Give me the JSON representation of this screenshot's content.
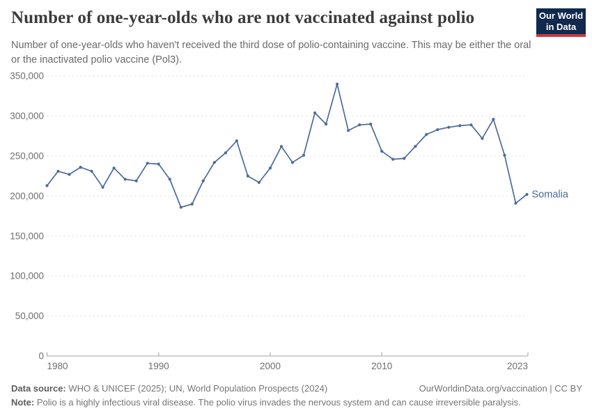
{
  "header": {
    "logo": {
      "line1": "Our World",
      "line2": "in Data"
    }
  },
  "chart_data": {
    "type": "line",
    "title": "Number of one-year-olds who are not vaccinated against polio",
    "subtitle": "Number of one-year-olds who haven't received the third dose of polio-containing vaccine. This may be either the oral or the inactivated polio vaccine (Pol3).",
    "xlabel": "",
    "ylabel": "",
    "x": [
      1980,
      1981,
      1982,
      1983,
      1984,
      1985,
      1986,
      1987,
      1988,
      1989,
      1990,
      1991,
      1992,
      1993,
      1994,
      1995,
      1996,
      1997,
      1998,
      1999,
      2000,
      2001,
      2002,
      2003,
      2004,
      2005,
      2006,
      2007,
      2008,
      2009,
      2010,
      2011,
      2012,
      2013,
      2014,
      2015,
      2016,
      2017,
      2018,
      2019,
      2020,
      2021,
      2022,
      2023
    ],
    "series": [
      {
        "name": "Somalia",
        "color": "#4C6A9C",
        "values": [
          213000,
          231000,
          227000,
          236000,
          231000,
          211000,
          235000,
          221000,
          219000,
          241000,
          240000,
          221000,
          186000,
          190000,
          219000,
          242000,
          254000,
          269000,
          225000,
          217000,
          235000,
          262000,
          242000,
          251000,
          304000,
          290000,
          340000,
          282000,
          289000,
          290000,
          256000,
          246000,
          247000,
          262000,
          277000,
          283000,
          286000,
          288000,
          289000,
          272000,
          296000,
          251000,
          191000,
          202000
        ]
      }
    ],
    "ylim": [
      0,
      350000
    ],
    "yticks": [
      0,
      50000,
      100000,
      150000,
      200000,
      250000,
      300000,
      350000
    ],
    "xticks": [
      1980,
      1990,
      2000,
      2010,
      2023
    ],
    "grid": "horizontal-dashed",
    "legend": "end-of-line entity label"
  },
  "footer": {
    "data_source_label": "Data source:",
    "data_source": "WHO & UNICEF (2025); UN, World Population Prospects (2024)",
    "attribution": "OurWorldinData.org/vaccination | CC BY",
    "note_label": "Note:",
    "note": "Polio is a highly infectious viral disease. The polio virus invades the nervous system and can cause irreversible paralysis."
  },
  "colors": {
    "line": "#4C6A9C",
    "grid": "#dedede",
    "axis": "#a1a1a1",
    "tick_text": "#6e6e6e",
    "logo_bg": "#12294d",
    "logo_accent": "#d1373f"
  }
}
